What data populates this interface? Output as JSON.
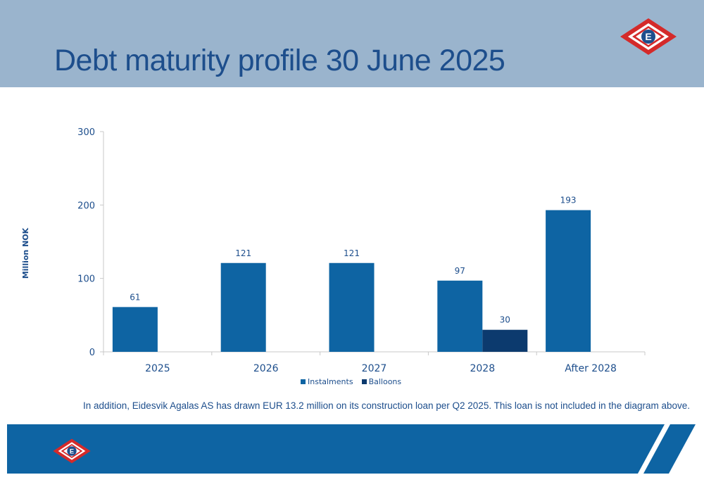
{
  "header": {
    "title": "Debt maturity profile 30 June 2025"
  },
  "colors": {
    "header_bg": "#9ab4cd",
    "title": "#1d4e8c",
    "instalments": "#0e64a3",
    "balloons": "#0c3a6e",
    "footer": "#0e64a3",
    "logo_red": "#d42a2a",
    "logo_blue": "#1d4e8c"
  },
  "logo": {
    "letter": "E"
  },
  "chart_data": {
    "type": "bar",
    "categories": [
      "2025",
      "2026",
      "2027",
      "2028",
      "After 2028"
    ],
    "series": [
      {
        "name": "Instalments",
        "values": [
          61,
          121,
          121,
          97,
          193
        ]
      },
      {
        "name": "Balloons",
        "values": [
          null,
          null,
          null,
          30,
          null
        ]
      }
    ],
    "ylabel": "Million NOK",
    "ylim": [
      0,
      300
    ],
    "yticks": [
      0,
      100,
      200,
      300
    ],
    "legend_position": "bottom",
    "grid": false
  },
  "footnote": "In addition, Eidesvik Agalas AS has drawn EUR 13.2 million on its construction loan per Q2 2025. This loan is not included in the diagram above."
}
